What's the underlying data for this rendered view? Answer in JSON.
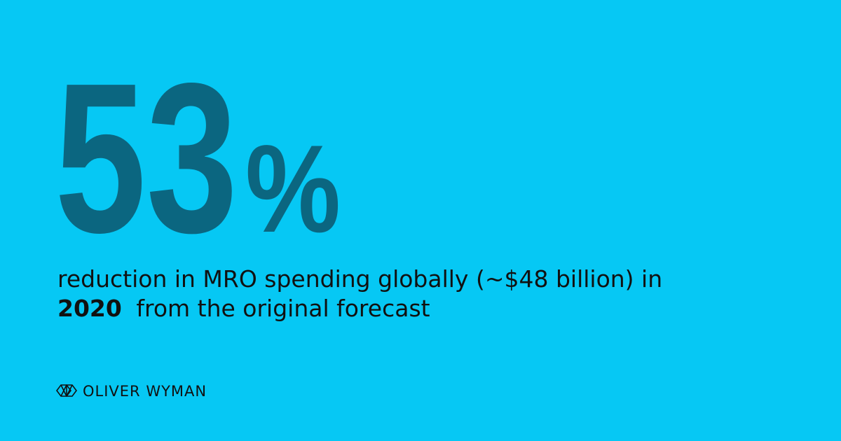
{
  "stat": {
    "number": "53",
    "unit": "%"
  },
  "description": {
    "line1": "reduction in MRO spending globally (~$48 billion) in",
    "highlight": "2020",
    "line2_rest": "from the original forecast"
  },
  "logo": {
    "text": "OLIVER WYMAN"
  }
}
